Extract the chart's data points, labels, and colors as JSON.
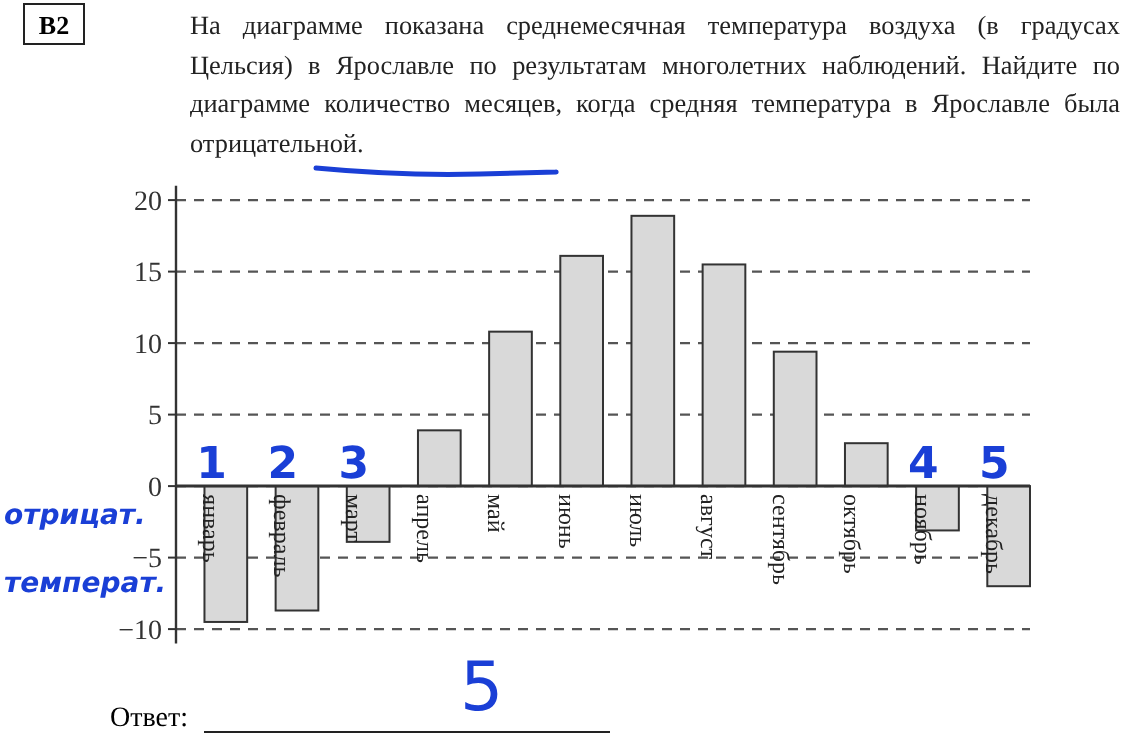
{
  "chart_data": {
    "type": "bar",
    "title": "На диаграмме показана среднемесячная температура воздуха (в градусах Цельсия) в Ярославле по результатам многолетних наблюдений. Найдите по диаграмме количество месяцев, когда средняя температура в Ярославле была отрицательной.",
    "categories": [
      "январь",
      "февраль",
      "март",
      "апрель",
      "май",
      "июнь",
      "июль",
      "август",
      "сентябрь",
      "октябрь",
      "ноябрь",
      "декабрь"
    ],
    "values": [
      -9.5,
      -8.7,
      -3.9,
      3.9,
      10.8,
      16.1,
      18.9,
      15.5,
      9.4,
      3.0,
      -3.1,
      -7.0
    ],
    "color": "#d9d9d9",
    "ylim": [
      -11,
      21
    ],
    "yticks": [
      -10,
      -5,
      0,
      5,
      10,
      15,
      20
    ],
    "grid": "y",
    "annotations": [
      "B2",
      "Ответ:",
      "5",
      "отрицат.",
      "температ.",
      {
        "text": "1",
        "x": "январь",
        "y": 0
      },
      {
        "text": "2",
        "x": "февраль",
        "y": 0
      },
      {
        "text": "3",
        "x": "март",
        "y": 0
      },
      {
        "text": "4",
        "x": "ноябрь",
        "y": 0
      },
      {
        "text": "5",
        "x": "декабрь",
        "y": 0
      }
    ]
  }
}
